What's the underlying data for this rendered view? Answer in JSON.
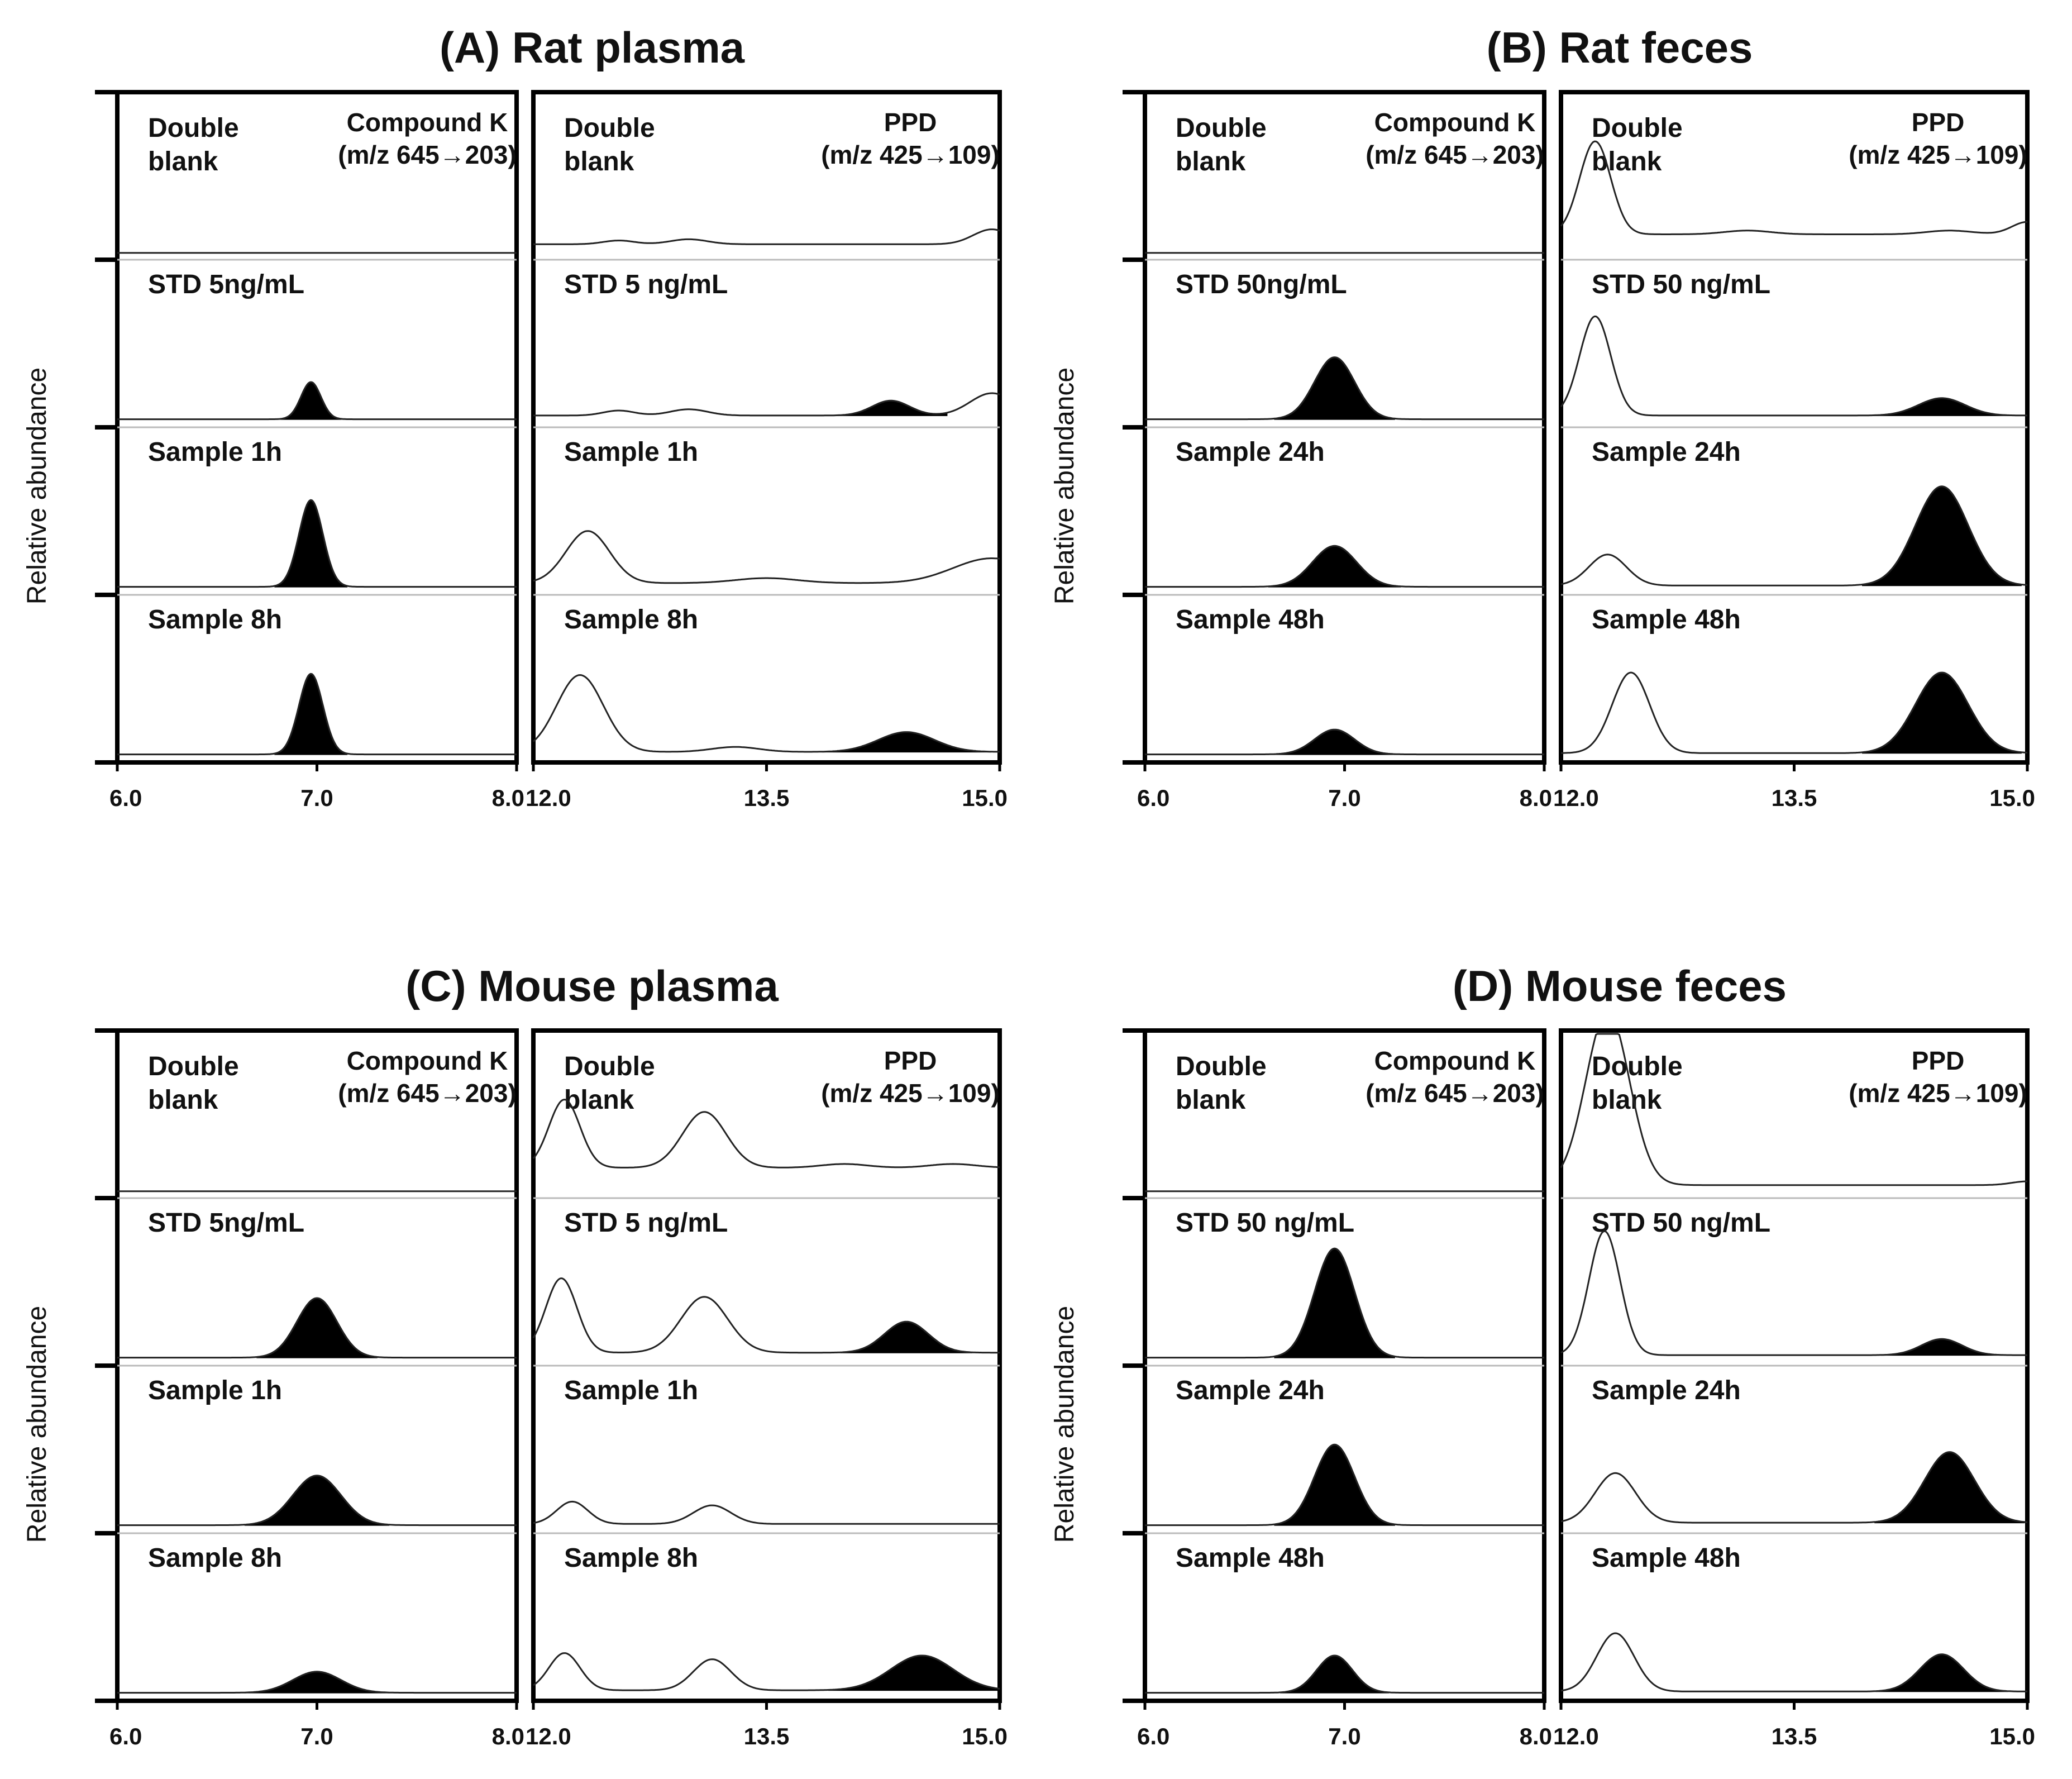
{
  "chart_data": [
    {
      "type": "line",
      "title": "(A) Rat plasma",
      "ylabel": "Relative abundance",
      "panels": [
        {
          "analyte": "Compound K",
          "transition": "(m/z 645→203)",
          "xlim": [
            6.0,
            8.0
          ],
          "xticks": [
            "6.0",
            "7.0",
            "8.0"
          ],
          "traces": [
            {
              "label": [
                "Double",
                "blank"
              ],
              "baseline": 0.01,
              "peaks": []
            },
            {
              "label": [
                "STD 5ng/mL"
              ],
              "baseline": 0.02,
              "peaks": [
                {
                  "x": 6.97,
                  "height": 0.3,
                  "width": 0.05,
                  "filled": true
                }
              ]
            },
            {
              "label": [
                "Sample 1h"
              ],
              "baseline": 0.02,
              "peaks": [
                {
                  "x": 6.97,
                  "height": 0.7,
                  "width": 0.06,
                  "filled": true
                }
              ]
            },
            {
              "label": [
                "Sample 8h"
              ],
              "baseline": 0.02,
              "peaks": [
                {
                  "x": 6.97,
                  "height": 0.65,
                  "width": 0.06,
                  "filled": true
                }
              ]
            }
          ]
        },
        {
          "analyte": "PPD",
          "transition": "(m/z 425→109)",
          "xlim": [
            12.0,
            15.0
          ],
          "xticks": [
            "12.0",
            "13.5",
            "15.0"
          ],
          "traces": [
            {
              "label": [
                "Double",
                "blank"
              ],
              "baseline": 0.08,
              "peaks": [
                {
                  "x": 12.55,
                  "height": 0.03,
                  "width": 0.1
                },
                {
                  "x": 13.0,
                  "height": 0.04,
                  "width": 0.12
                },
                {
                  "x": 14.95,
                  "height": 0.12,
                  "width": 0.12
                }
              ]
            },
            {
              "label": [
                "STD 5 ng/mL"
              ],
              "baseline": 0.05,
              "peaks": [
                {
                  "x": 12.55,
                  "height": 0.04,
                  "width": 0.1
                },
                {
                  "x": 13.0,
                  "height": 0.05,
                  "width": 0.12
                },
                {
                  "x": 14.3,
                  "height": 0.12,
                  "width": 0.12,
                  "filled": true
                },
                {
                  "x": 14.95,
                  "height": 0.18,
                  "width": 0.14
                }
              ]
            },
            {
              "label": [
                "Sample 1h"
              ],
              "baseline": 0.05,
              "peaks": [
                {
                  "x": 12.35,
                  "height": 0.42,
                  "width": 0.14
                },
                {
                  "x": 13.5,
                  "height": 0.04,
                  "width": 0.2
                },
                {
                  "x": 14.95,
                  "height": 0.2,
                  "width": 0.25
                }
              ]
            },
            {
              "label": [
                "Sample 8h"
              ],
              "baseline": 0.04,
              "peaks": [
                {
                  "x": 12.3,
                  "height": 0.62,
                  "width": 0.15
                },
                {
                  "x": 13.3,
                  "height": 0.04,
                  "width": 0.15
                },
                {
                  "x": 14.4,
                  "height": 0.16,
                  "width": 0.18,
                  "filled": true
                }
              ]
            }
          ]
        }
      ]
    },
    {
      "type": "line",
      "title": "(B) Rat feces",
      "ylabel": "Relative abundance",
      "panels": [
        {
          "analyte": "Compound K",
          "transition": "(m/z 645→203)",
          "xlim": [
            6.0,
            8.0
          ],
          "xticks": [
            "6.0",
            "7.0",
            "8.0"
          ],
          "traces": [
            {
              "label": [
                "Double",
                "blank"
              ],
              "baseline": 0.01,
              "peaks": []
            },
            {
              "label": [
                "STD 50ng/mL"
              ],
              "baseline": 0.02,
              "peaks": [
                {
                  "x": 6.95,
                  "height": 0.5,
                  "width": 0.1,
                  "filled": true
                }
              ]
            },
            {
              "label": [
                "Sample 24h"
              ],
              "baseline": 0.02,
              "peaks": [
                {
                  "x": 6.95,
                  "height": 0.33,
                  "width": 0.11,
                  "filled": true
                }
              ]
            },
            {
              "label": [
                "Sample 48h"
              ],
              "baseline": 0.02,
              "peaks": [
                {
                  "x": 6.95,
                  "height": 0.2,
                  "width": 0.1,
                  "filled": true
                }
              ]
            }
          ]
        },
        {
          "analyte": "PPD",
          "transition": "(m/z 425→109)",
          "xlim": [
            12.0,
            15.0
          ],
          "xticks": [
            "12.0",
            "13.5",
            "15.0"
          ],
          "traces": [
            {
              "label": [
                "Double",
                "blank"
              ],
              "baseline": 0.16,
              "peaks": [
                {
                  "x": 12.22,
                  "height": 0.75,
                  "width": 0.1
                },
                {
                  "x": 13.2,
                  "height": 0.03,
                  "width": 0.15
                },
                {
                  "x": 14.5,
                  "height": 0.03,
                  "width": 0.15
                },
                {
                  "x": 15.0,
                  "height": 0.1,
                  "width": 0.1
                }
              ]
            },
            {
              "label": [
                "STD 50 ng/mL"
              ],
              "baseline": 0.05,
              "peaks": [
                {
                  "x": 12.22,
                  "height": 0.8,
                  "width": 0.1
                },
                {
                  "x": 14.45,
                  "height": 0.14,
                  "width": 0.15,
                  "filled": true
                }
              ]
            },
            {
              "label": [
                "Sample 24h"
              ],
              "baseline": 0.03,
              "peaks": [
                {
                  "x": 12.3,
                  "height": 0.25,
                  "width": 0.12
                },
                {
                  "x": 14.45,
                  "height": 0.8,
                  "width": 0.17,
                  "filled": true
                }
              ]
            },
            {
              "label": [
                "Sample 48h"
              ],
              "baseline": 0.03,
              "peaks": [
                {
                  "x": 12.45,
                  "height": 0.65,
                  "width": 0.12
                },
                {
                  "x": 14.45,
                  "height": 0.65,
                  "width": 0.17,
                  "filled": true
                }
              ]
            }
          ]
        }
      ]
    },
    {
      "type": "line",
      "title": "(C) Mouse plasma",
      "ylabel": "Relative abundance",
      "panels": [
        {
          "analyte": "Compound K",
          "transition": "(m/z 645→203)",
          "xlim": [
            6.0,
            8.0
          ],
          "xticks": [
            "6.0",
            "7.0",
            "8.0"
          ],
          "traces": [
            {
              "label": [
                "Double",
                "blank"
              ],
              "baseline": 0.01,
              "peaks": []
            },
            {
              "label": [
                "STD 5ng/mL"
              ],
              "baseline": 0.02,
              "peaks": [
                {
                  "x": 7.0,
                  "height": 0.48,
                  "width": 0.1,
                  "filled": true
                }
              ]
            },
            {
              "label": [
                "Sample 1h"
              ],
              "baseline": 0.02,
              "peaks": [
                {
                  "x": 7.0,
                  "height": 0.4,
                  "width": 0.12,
                  "filled": true
                }
              ]
            },
            {
              "label": [
                "Sample 8h"
              ],
              "baseline": 0.02,
              "peaks": [
                {
                  "x": 7.0,
                  "height": 0.17,
                  "width": 0.12,
                  "filled": true
                }
              ]
            }
          ]
        },
        {
          "analyte": "PPD",
          "transition": "(m/z 425→109)",
          "xlim": [
            12.0,
            15.0
          ],
          "xticks": [
            "12.0",
            "13.5",
            "15.0"
          ],
          "traces": [
            {
              "label": [
                "Double",
                "blank"
              ],
              "baseline": 0.2,
              "peaks": [
                {
                  "x": 12.2,
                  "height": 0.55,
                  "width": 0.1
                },
                {
                  "x": 13.1,
                  "height": 0.45,
                  "width": 0.14
                },
                {
                  "x": 14.0,
                  "height": 0.03,
                  "width": 0.15
                },
                {
                  "x": 14.7,
                  "height": 0.03,
                  "width": 0.15
                }
              ]
            },
            {
              "label": [
                "STD 5 ng/mL"
              ],
              "baseline": 0.06,
              "peaks": [
                {
                  "x": 12.18,
                  "height": 0.6,
                  "width": 0.1
                },
                {
                  "x": 13.1,
                  "height": 0.45,
                  "width": 0.15
                },
                {
                  "x": 14.4,
                  "height": 0.25,
                  "width": 0.14,
                  "filled": true
                }
              ]
            },
            {
              "label": [
                "Sample 1h"
              ],
              "baseline": 0.03,
              "peaks": [
                {
                  "x": 12.25,
                  "height": 0.18,
                  "width": 0.1
                },
                {
                  "x": 13.15,
                  "height": 0.15,
                  "width": 0.12
                }
              ]
            },
            {
              "label": [
                "Sample 8h"
              ],
              "baseline": 0.04,
              "peaks": [
                {
                  "x": 12.2,
                  "height": 0.3,
                  "width": 0.1
                },
                {
                  "x": 13.15,
                  "height": 0.25,
                  "width": 0.12
                },
                {
                  "x": 14.5,
                  "height": 0.28,
                  "width": 0.2,
                  "filled": true
                }
              ]
            }
          ]
        }
      ]
    },
    {
      "type": "line",
      "title": "(D) Mouse feces",
      "ylabel": "Relative abundance",
      "panels": [
        {
          "analyte": "Compound K",
          "transition": "(m/z 645→203)",
          "xlim": [
            6.0,
            8.0
          ],
          "xticks": [
            "6.0",
            "7.0",
            "8.0"
          ],
          "traces": [
            {
              "label": [
                "Double",
                "blank"
              ],
              "baseline": 0.01,
              "peaks": []
            },
            {
              "label": [
                "STD 50 ng/mL"
              ],
              "baseline": 0.02,
              "peaks": [
                {
                  "x": 6.95,
                  "height": 0.88,
                  "width": 0.1,
                  "filled": true
                }
              ]
            },
            {
              "label": [
                "Sample 24h"
              ],
              "baseline": 0.02,
              "peaks": [
                {
                  "x": 6.95,
                  "height": 0.65,
                  "width": 0.1,
                  "filled": true
                }
              ]
            },
            {
              "label": [
                "Sample 48h"
              ],
              "baseline": 0.02,
              "peaks": [
                {
                  "x": 6.95,
                  "height": 0.3,
                  "width": 0.09,
                  "filled": true
                }
              ]
            }
          ]
        },
        {
          "analyte": "PPD",
          "transition": "(m/z 425→109)",
          "xlim": [
            12.0,
            15.0
          ],
          "xticks": [
            "12.0",
            "13.5",
            "15.0"
          ],
          "traces": [
            {
              "label": [
                "Double",
                "blank"
              ],
              "baseline": 0.06,
              "peaks": [
                {
                  "x": 12.3,
                  "height": 1.4,
                  "width": 0.14
                },
                {
                  "x": 15.0,
                  "height": 0.03,
                  "width": 0.1
                }
              ]
            },
            {
              "label": [
                "STD 50 ng/mL"
              ],
              "baseline": 0.04,
              "peaks": [
                {
                  "x": 12.28,
                  "height": 1.0,
                  "width": 0.1
                },
                {
                  "x": 14.45,
                  "height": 0.13,
                  "width": 0.13,
                  "filled": true
                }
              ]
            },
            {
              "label": [
                "Sample 24h"
              ],
              "baseline": 0.04,
              "peaks": [
                {
                  "x": 12.35,
                  "height": 0.4,
                  "width": 0.13
                },
                {
                  "x": 14.5,
                  "height": 0.57,
                  "width": 0.16,
                  "filled": true
                }
              ]
            },
            {
              "label": [
                "Sample 48h"
              ],
              "baseline": 0.03,
              "peaks": [
                {
                  "x": 12.35,
                  "height": 0.47,
                  "width": 0.12
                },
                {
                  "x": 14.45,
                  "height": 0.3,
                  "width": 0.14,
                  "filled": true
                }
              ]
            }
          ]
        }
      ]
    }
  ]
}
